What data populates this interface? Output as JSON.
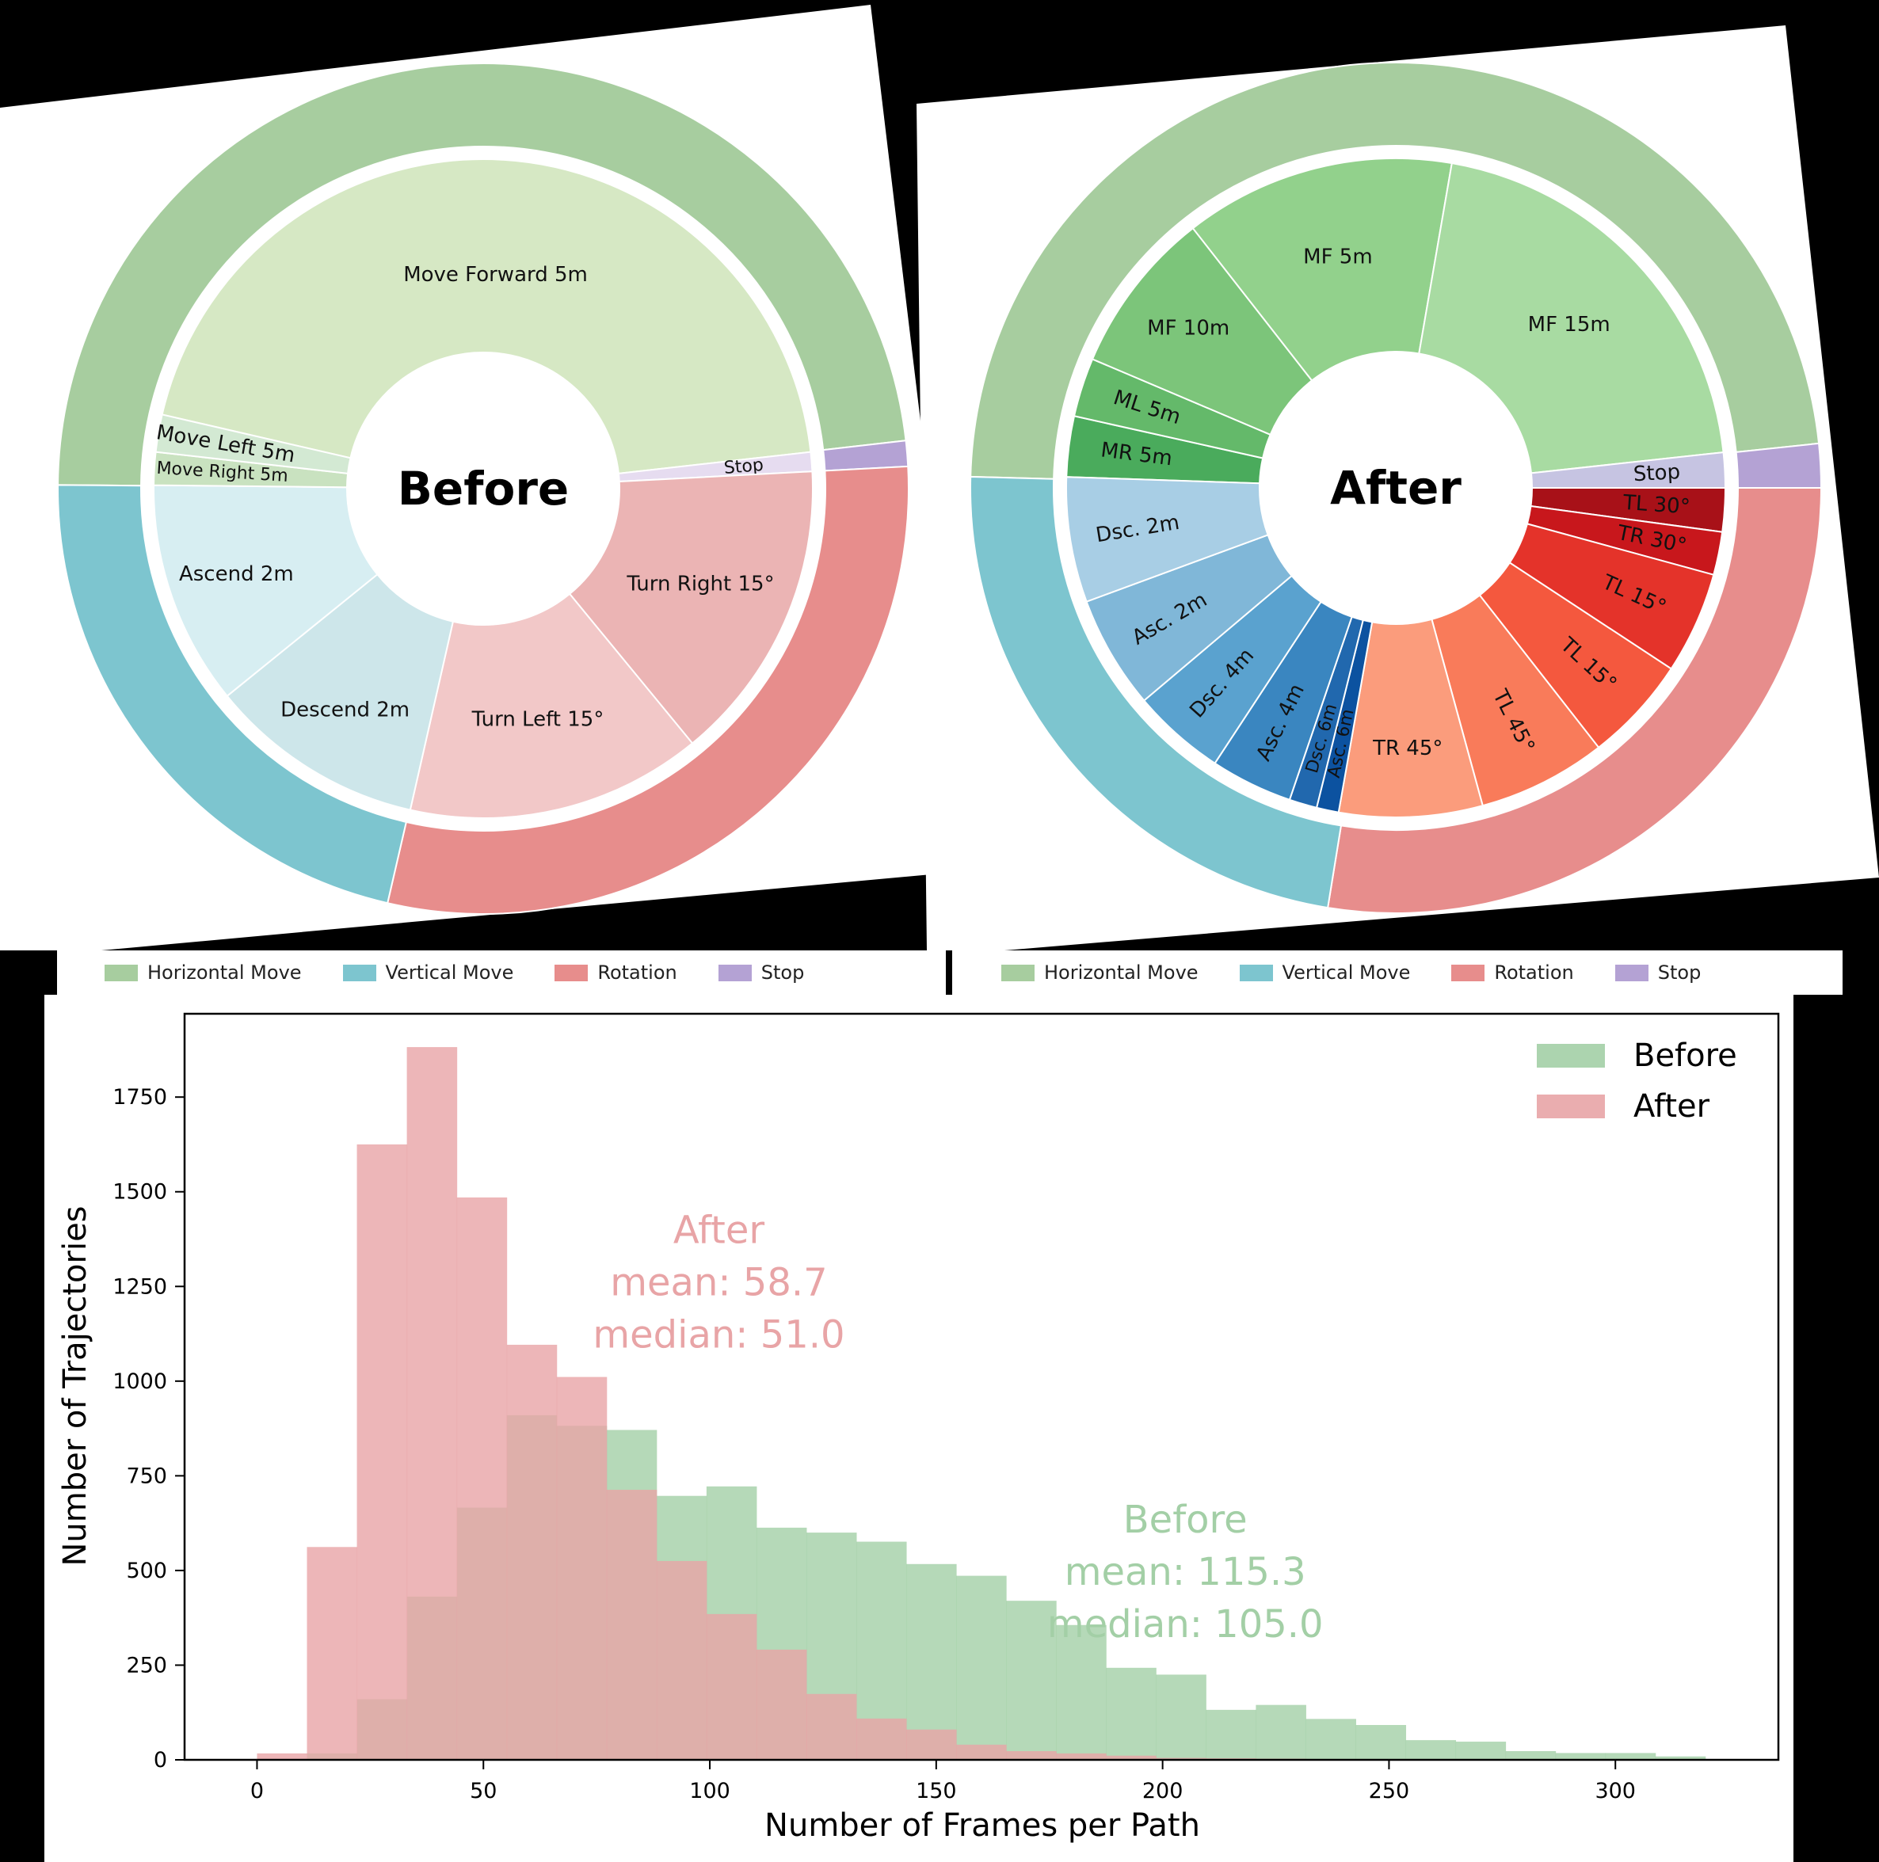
{
  "colors": {
    "horizontal": "#a7cd9f",
    "vertical": "#7dc5cf",
    "rotation": "#e78d8c",
    "stop": "#b4a2d4",
    "hist_before": "#a3cfa6",
    "hist_after": "#e8a4a6"
  },
  "legend": {
    "items": [
      {
        "label": "Horizontal Move",
        "color": "#a7cd9f"
      },
      {
        "label": "Vertical Move",
        "color": "#7dc5cf"
      },
      {
        "label": "Rotation",
        "color": "#e78d8c"
      },
      {
        "label": "Stop",
        "color": "#b4a2d4"
      }
    ]
  },
  "chart_data": [
    {
      "type": "pie",
      "title": "Before",
      "center_label": "Before",
      "outer_ring": [
        {
          "label": "Horizontal Move",
          "start": 180.5,
          "end": 353.5,
          "color": "#a7cd9f"
        },
        {
          "label": "Stop",
          "start": 353.5,
          "end": 357.0,
          "color": "#b4a2d4"
        },
        {
          "label": "Rotation",
          "start": 357.0,
          "end": 463.0,
          "color": "#e78d8c"
        },
        {
          "label": "Vertical Move",
          "start": 103.0,
          "end": 180.5,
          "color": "#7dc5cf"
        }
      ],
      "inner_ring": [
        {
          "label": "Move Forward 5m",
          "start": 193.0,
          "end": 353.6,
          "color": "#d6e8c4"
        },
        {
          "label": "Stop",
          "start": 353.6,
          "end": 357.0,
          "color": "#e6dcf0"
        },
        {
          "label": "Turn Right 15°",
          "start": 357.0,
          "end": 410.6,
          "color": "#ebb4b4"
        },
        {
          "label": "Turn Left 15°",
          "start": 50.6,
          "end": 102.8,
          "color": "#f2c8c8"
        },
        {
          "label": "Descend 2m",
          "start": 102.8,
          "end": 141.0,
          "color": "#cde6ea"
        },
        {
          "label": "Ascend 2m",
          "start": 141.0,
          "end": 180.6,
          "color": "#d7eef2"
        },
        {
          "label": "Move Right 5m",
          "start": 180.6,
          "end": 186.4,
          "color": "#c9e2c0"
        },
        {
          "label": "Move Left 5m",
          "start": 186.4,
          "end": 193.0,
          "color": "#d3e9d3"
        }
      ]
    },
    {
      "type": "pie",
      "title": "After",
      "center_label": "After",
      "outer_ring": [
        {
          "label": "Horizontal Move",
          "start": 181.5,
          "end": 354.0,
          "color": "#a7cd9f"
        },
        {
          "label": "Stop",
          "start": 354.0,
          "end": 360.0,
          "color": "#b4a2d4"
        },
        {
          "label": "Rotation",
          "start": 0.0,
          "end": 99.2,
          "color": "#e78d8c"
        },
        {
          "label": "Vertical Move",
          "start": 99.2,
          "end": 181.5,
          "color": "#7dc5cf"
        }
      ],
      "inner_ring": [
        {
          "label": "MR 5m",
          "start": 181.9,
          "end": 192.6,
          "color": "#4aab5c"
        },
        {
          "label": "ML 5m",
          "start": 192.6,
          "end": 203.0,
          "color": "#64b96a"
        },
        {
          "label": "MF 10m",
          "start": 203.0,
          "end": 232.0,
          "color": "#7cc57a"
        },
        {
          "label": "MF 5m",
          "start": 232.0,
          "end": 279.8,
          "color": "#92d18c"
        },
        {
          "label": "MF 15m",
          "start": 279.8,
          "end": 353.8,
          "color": "#a8dba2"
        },
        {
          "label": "Stop",
          "start": 353.8,
          "end": 360.0,
          "color": "#c6c4e2"
        },
        {
          "label": "TL 30°",
          "start": 0.0,
          "end": 7.7,
          "color": "#a81118"
        },
        {
          "label": "TR 30°",
          "start": 7.7,
          "end": 15.3,
          "color": "#c8171c"
        },
        {
          "label": "TL 15°",
          "start": 15.3,
          "end": 33.3,
          "color": "#e4332a"
        },
        {
          "label": "TL 15°",
          "start": 33.3,
          "end": 52.0,
          "color": "#f4583e"
        },
        {
          "label": "TL 45°",
          "start": 52.0,
          "end": 74.7,
          "color": "#f97b5a"
        },
        {
          "label": "TR 45°",
          "start": 74.7,
          "end": 100.0,
          "color": "#fb9c7c"
        },
        {
          "label": "Asc. 6m",
          "start": 100.0,
          "end": 103.9,
          "color": "#0c52a0"
        },
        {
          "label": "Dsc. 6m",
          "start": 103.9,
          "end": 108.8,
          "color": "#2168ae"
        },
        {
          "label": "Asc. 4m",
          "start": 108.8,
          "end": 123.3,
          "color": "#3a86c0"
        },
        {
          "label": "Dsc. 4m",
          "start": 123.3,
          "end": 139.8,
          "color": "#5aa2cf"
        },
        {
          "label": "Asc. 2m",
          "start": 139.8,
          "end": 159.8,
          "color": "#80b7d8"
        },
        {
          "label": "Dsc. 2m",
          "start": 159.8,
          "end": 181.9,
          "color": "#a8cee5"
        }
      ]
    },
    {
      "type": "bar",
      "subtype": "histogram",
      "title": "",
      "xlabel": "Number of Frames per Path",
      "ylabel": "Number of Trajectories",
      "xlim": [
        -16,
        336
      ],
      "ylim": [
        0,
        1970
      ],
      "xticks": [
        0,
        50,
        100,
        150,
        200,
        250,
        300
      ],
      "yticks": [
        0,
        250,
        500,
        750,
        1000,
        1250,
        1500,
        1750
      ],
      "bin_width": 11.03,
      "grid": false,
      "legend_position": "upper right",
      "legend": [
        "Before",
        "After"
      ],
      "series": [
        {
          "name": "Before",
          "color": "#a3cfa6",
          "bin_start": 0,
          "values": [
            2,
            17,
            160,
            431,
            666,
            910,
            882,
            871,
            697,
            722,
            613,
            600,
            576,
            517,
            486,
            420,
            356,
            243,
            225,
            132,
            145,
            108,
            92,
            52,
            48,
            23,
            18,
            18,
            9
          ],
          "annotation": {
            "lines": [
              "Before",
              "mean: 115.3",
              "median: 105.0"
            ],
            "x": 205,
            "y": 600
          }
        },
        {
          "name": "After",
          "color": "#e8a4a6",
          "bin_start": 0,
          "values": [
            17,
            562,
            1625,
            1882,
            1485,
            1096,
            1011,
            713,
            525,
            385,
            291,
            174,
            109,
            80,
            40,
            23,
            17,
            11,
            5,
            4,
            3,
            0,
            0,
            0,
            0,
            0,
            0,
            0,
            0
          ],
          "annotation": {
            "lines": [
              "After",
              "mean: 58.7",
              "median: 51.0"
            ],
            "x": 102,
            "y": 1365
          }
        }
      ]
    }
  ]
}
